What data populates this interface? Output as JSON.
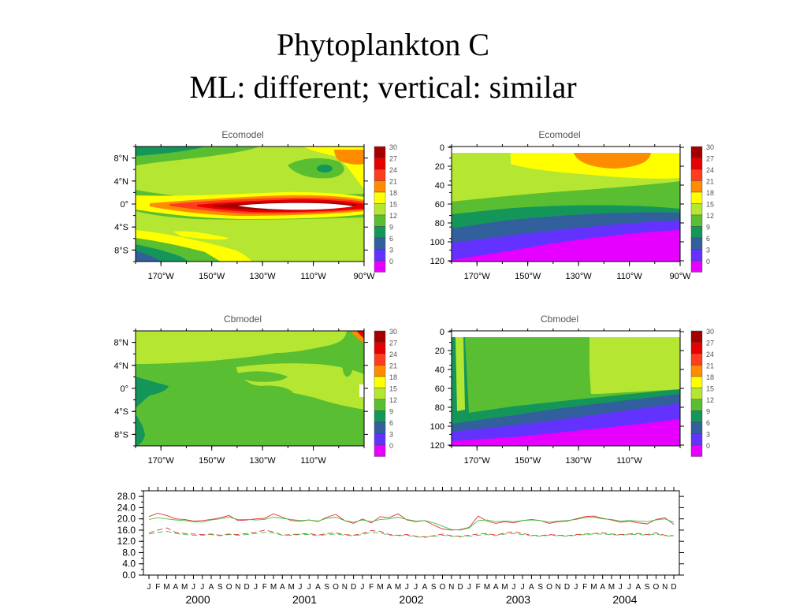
{
  "slide": {
    "title_line1": "Phytoplankton C",
    "title_line2": "ML: different; vertical: similar"
  },
  "colorbar": {
    "levels": [
      "30",
      "27",
      "24",
      "21",
      "18",
      "15",
      "12",
      "9",
      "6",
      "3",
      "0"
    ],
    "colors": [
      "#a50000",
      "#e60000",
      "#ff3c1e",
      "#ff8c00",
      "#ffff00",
      "#b4e632",
      "#5abe32",
      "#14965a",
      "#32609c",
      "#6432ff",
      "#e600ff"
    ]
  },
  "chart_data": [
    {
      "type": "heatmap",
      "title": "Ecomodel",
      "xticks": [
        "170°W",
        "150°W",
        "130°W",
        "110°W",
        "90°W"
      ],
      "yticks": [
        "8°N",
        "4°N",
        "0°",
        "4°S",
        "8°S"
      ],
      "description_values": "longitude-latitude map of phytoplankton C; maximum >30 along equator 140°W-100°W, 18-21 elsewhere"
    },
    {
      "type": "heatmap",
      "title": "Ecomodel",
      "xticks": [
        "170°W",
        "150°W",
        "130°W",
        "110°W",
        "90°W"
      ],
      "yticks": [
        "0",
        "20",
        "40",
        "60",
        "80",
        "100",
        "120"
      ],
      "description_values": "longitude-depth section; 18-24 near surface, decreasing to 0-3 below 100 m"
    },
    {
      "type": "heatmap",
      "title": "Cbmodel",
      "xticks": [
        "170°W",
        "150°W",
        "130°W",
        "110°W"
      ],
      "yticks": [
        "8°N",
        "4°N",
        "0°",
        "4°S",
        "8°S"
      ],
      "description_values": "longitude-latitude map; mostly 12-18"
    },
    {
      "type": "heatmap",
      "title": "Cbmodel",
      "xticks": [
        "170°W",
        "150°W",
        "130°W",
        "110°W"
      ],
      "yticks": [
        "0",
        "20",
        "40",
        "60",
        "80",
        "100",
        "120"
      ],
      "description_values": "longitude-depth section; 12-18 in upper layer, decreasing to 0-3 at depth"
    },
    {
      "type": "line",
      "yticks": [
        "28.0",
        "24.0",
        "20.0",
        "16.0",
        "12.0",
        "8.0",
        "4.0",
        "0.0"
      ],
      "ylim": [
        0,
        30
      ],
      "months": [
        "J",
        "F",
        "M",
        "A",
        "M",
        "J",
        "J",
        "A",
        "S",
        "O",
        "N",
        "D"
      ],
      "years": [
        "2000",
        "2001",
        "2002",
        "2003",
        "2004"
      ],
      "series": [
        {
          "color": "#e03030",
          "style": "solid",
          "values": [
            20.8,
            22.0,
            21.2,
            20.0,
            19.8,
            19.2,
            19.4,
            19.8,
            20.4,
            21.2,
            19.4,
            19.6,
            20.0,
            20.2,
            21.8,
            20.6,
            19.4,
            19.2,
            19.6,
            19.0,
            20.6,
            21.6,
            19.4,
            18.4,
            20.0,
            18.6,
            20.8,
            20.4,
            21.8,
            19.6,
            19.0,
            19.4,
            17.8,
            16.4,
            16.0,
            16.2,
            17.0,
            21.0,
            19.2,
            18.4,
            19.0,
            18.6,
            19.4,
            19.8,
            19.4,
            18.4,
            19.0,
            19.2,
            20.0,
            20.8,
            21.0,
            20.2,
            19.6,
            18.8,
            19.2,
            18.6,
            18.2,
            19.8,
            20.4,
            18.0
          ]
        },
        {
          "color": "#40c040",
          "style": "solid",
          "values": [
            19.8,
            20.4,
            20.0,
            19.6,
            19.4,
            19.0,
            18.8,
            19.6,
            20.0,
            20.6,
            19.8,
            19.8,
            19.6,
            19.8,
            20.6,
            20.2,
            19.8,
            19.4,
            19.6,
            19.2,
            20.2,
            20.6,
            19.4,
            18.8,
            19.6,
            19.0,
            19.8,
            20.0,
            20.6,
            19.8,
            19.2,
            19.4,
            18.6,
            17.4,
            16.2,
            16.0,
            16.8,
            19.4,
            19.6,
            19.0,
            19.2,
            19.0,
            19.4,
            19.6,
            19.4,
            18.8,
            19.2,
            19.4,
            19.8,
            20.4,
            20.6,
            20.0,
            19.8,
            19.2,
            19.4,
            19.2,
            19.0,
            19.6,
            20.0,
            18.8
          ]
        },
        {
          "color": "#e03030",
          "style": "dashed",
          "values": [
            15.0,
            16.0,
            16.8,
            15.2,
            14.8,
            14.6,
            14.4,
            14.6,
            14.2,
            14.6,
            14.4,
            14.8,
            15.2,
            16.0,
            15.4,
            14.2,
            14.4,
            14.6,
            14.8,
            14.2,
            14.8,
            15.0,
            14.4,
            14.2,
            14.8,
            15.8,
            15.6,
            14.4,
            14.2,
            14.4,
            13.8,
            13.6,
            14.0,
            14.6,
            14.0,
            13.8,
            14.2,
            14.6,
            14.8,
            14.2,
            15.0,
            15.4,
            14.8,
            14.2,
            14.0,
            14.4,
            14.2,
            14.0,
            14.4,
            14.6,
            14.8,
            15.0,
            14.6,
            14.4,
            14.6,
            14.8,
            14.4,
            15.0,
            14.2,
            14.0
          ]
        },
        {
          "color": "#40c040",
          "style": "dashed",
          "values": [
            14.6,
            15.2,
            15.6,
            14.8,
            14.4,
            14.2,
            14.2,
            14.4,
            14.0,
            14.4,
            14.2,
            14.4,
            14.8,
            15.2,
            15.0,
            14.2,
            14.2,
            14.4,
            14.4,
            14.0,
            14.4,
            14.6,
            14.2,
            14.0,
            14.4,
            15.2,
            15.0,
            14.2,
            14.0,
            14.2,
            13.6,
            13.4,
            13.8,
            14.2,
            13.8,
            13.6,
            13.8,
            14.2,
            14.4,
            14.0,
            14.6,
            14.8,
            14.4,
            14.0,
            13.8,
            14.2,
            14.0,
            13.8,
            14.2,
            14.4,
            14.6,
            14.6,
            14.4,
            14.2,
            14.4,
            14.4,
            14.2,
            14.6,
            14.0,
            13.8
          ]
        }
      ]
    }
  ]
}
